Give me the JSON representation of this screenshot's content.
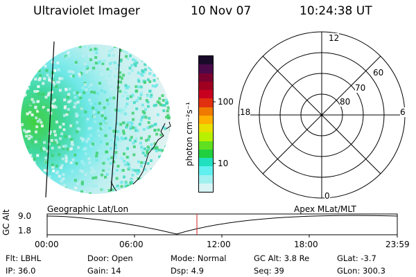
{
  "header": {
    "instrument": "Ultraviolet Imager",
    "date": "10 Nov 07",
    "time": "10:24:38 UT"
  },
  "colorbar": {
    "label": "photon cm⁻²s⁻¹",
    "ticks": [
      "100",
      "10"
    ],
    "colors": [
      "#1a0a2a",
      "#4a0a4a",
      "#7a0030",
      "#a00020",
      "#c80020",
      "#e03010",
      "#f07a00",
      "#ffb000",
      "#e8e000",
      "#b8f000",
      "#60e020",
      "#20d040",
      "#20e0c0",
      "#60f0f0",
      "#a0f0f0",
      "#d8f4f4"
    ]
  },
  "polar": {
    "mlt_labels": {
      "top": "12",
      "left": "18",
      "right": "6",
      "bottom": "0"
    },
    "lat_labels": [
      "60",
      "70",
      "80"
    ]
  },
  "earth_map": {
    "label": "Geographic Lat/Lon"
  },
  "apex_label": "Apex MLat/MLT",
  "timeline": {
    "ylabel": "GC Alt",
    "y_ticks": [
      "9.0",
      "1.8"
    ],
    "x_ticks": [
      "00:00",
      "06:00",
      "12:00",
      "18:00",
      "23:59"
    ],
    "marker_color": "#d02020"
  },
  "info": {
    "filter": "Flt: LBHL",
    "door": "Door: Open",
    "mode": "Mode: Normal",
    "gc_alt": "GC Alt: 3.8 Re",
    "glat": "GLat:  -3.7",
    "ip": "IP: 36.0",
    "gain": "Gain: 14",
    "dsp": "Dsp:     4.9",
    "seq": "Seq: 39",
    "glon": "GLon: 300.3"
  }
}
